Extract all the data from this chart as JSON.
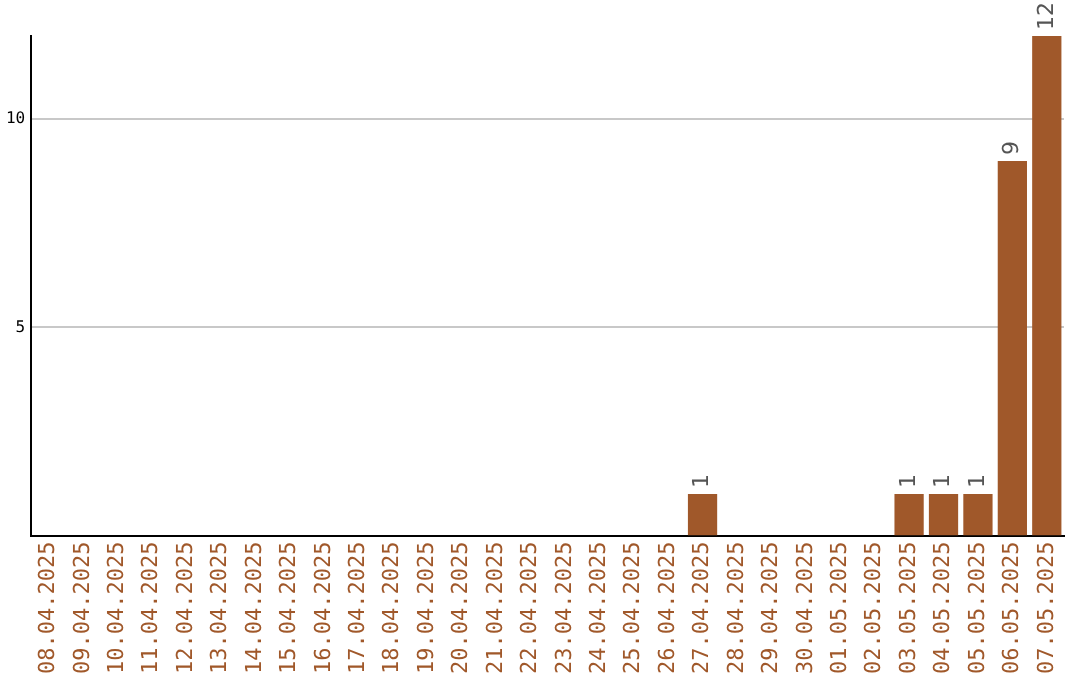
{
  "chart_data": {
    "type": "bar",
    "categories": [
      "08.04.2025",
      "09.04.2025",
      "10.04.2025",
      "11.04.2025",
      "12.04.2025",
      "13.04.2025",
      "14.04.2025",
      "15.04.2025",
      "16.04.2025",
      "17.04.2025",
      "18.04.2025",
      "19.04.2025",
      "20.04.2025",
      "21.04.2025",
      "22.04.2025",
      "23.04.2025",
      "24.04.2025",
      "25.04.2025",
      "26.04.2025",
      "27.04.2025",
      "28.04.2025",
      "29.04.2025",
      "30.04.2025",
      "01.05.2025",
      "02.05.2025",
      "03.05.2025",
      "04.05.2025",
      "05.05.2025",
      "06.05.2025",
      "07.05.2025"
    ],
    "values": [
      0,
      0,
      0,
      0,
      0,
      0,
      0,
      0,
      0,
      0,
      0,
      0,
      0,
      0,
      0,
      0,
      0,
      0,
      0,
      1,
      0,
      0,
      0,
      0,
      0,
      1,
      1,
      1,
      9,
      12
    ],
    "value_labels": [
      null,
      null,
      null,
      null,
      null,
      null,
      null,
      null,
      null,
      null,
      null,
      null,
      null,
      null,
      null,
      null,
      null,
      null,
      null,
      "1",
      null,
      null,
      null,
      null,
      null,
      "1",
      "1",
      "1",
      "9",
      "12"
    ],
    "color": "#a0582a",
    "ylim": [
      0,
      12
    ],
    "yticks": [
      5,
      10
    ],
    "grid": "y",
    "legend": false
  }
}
